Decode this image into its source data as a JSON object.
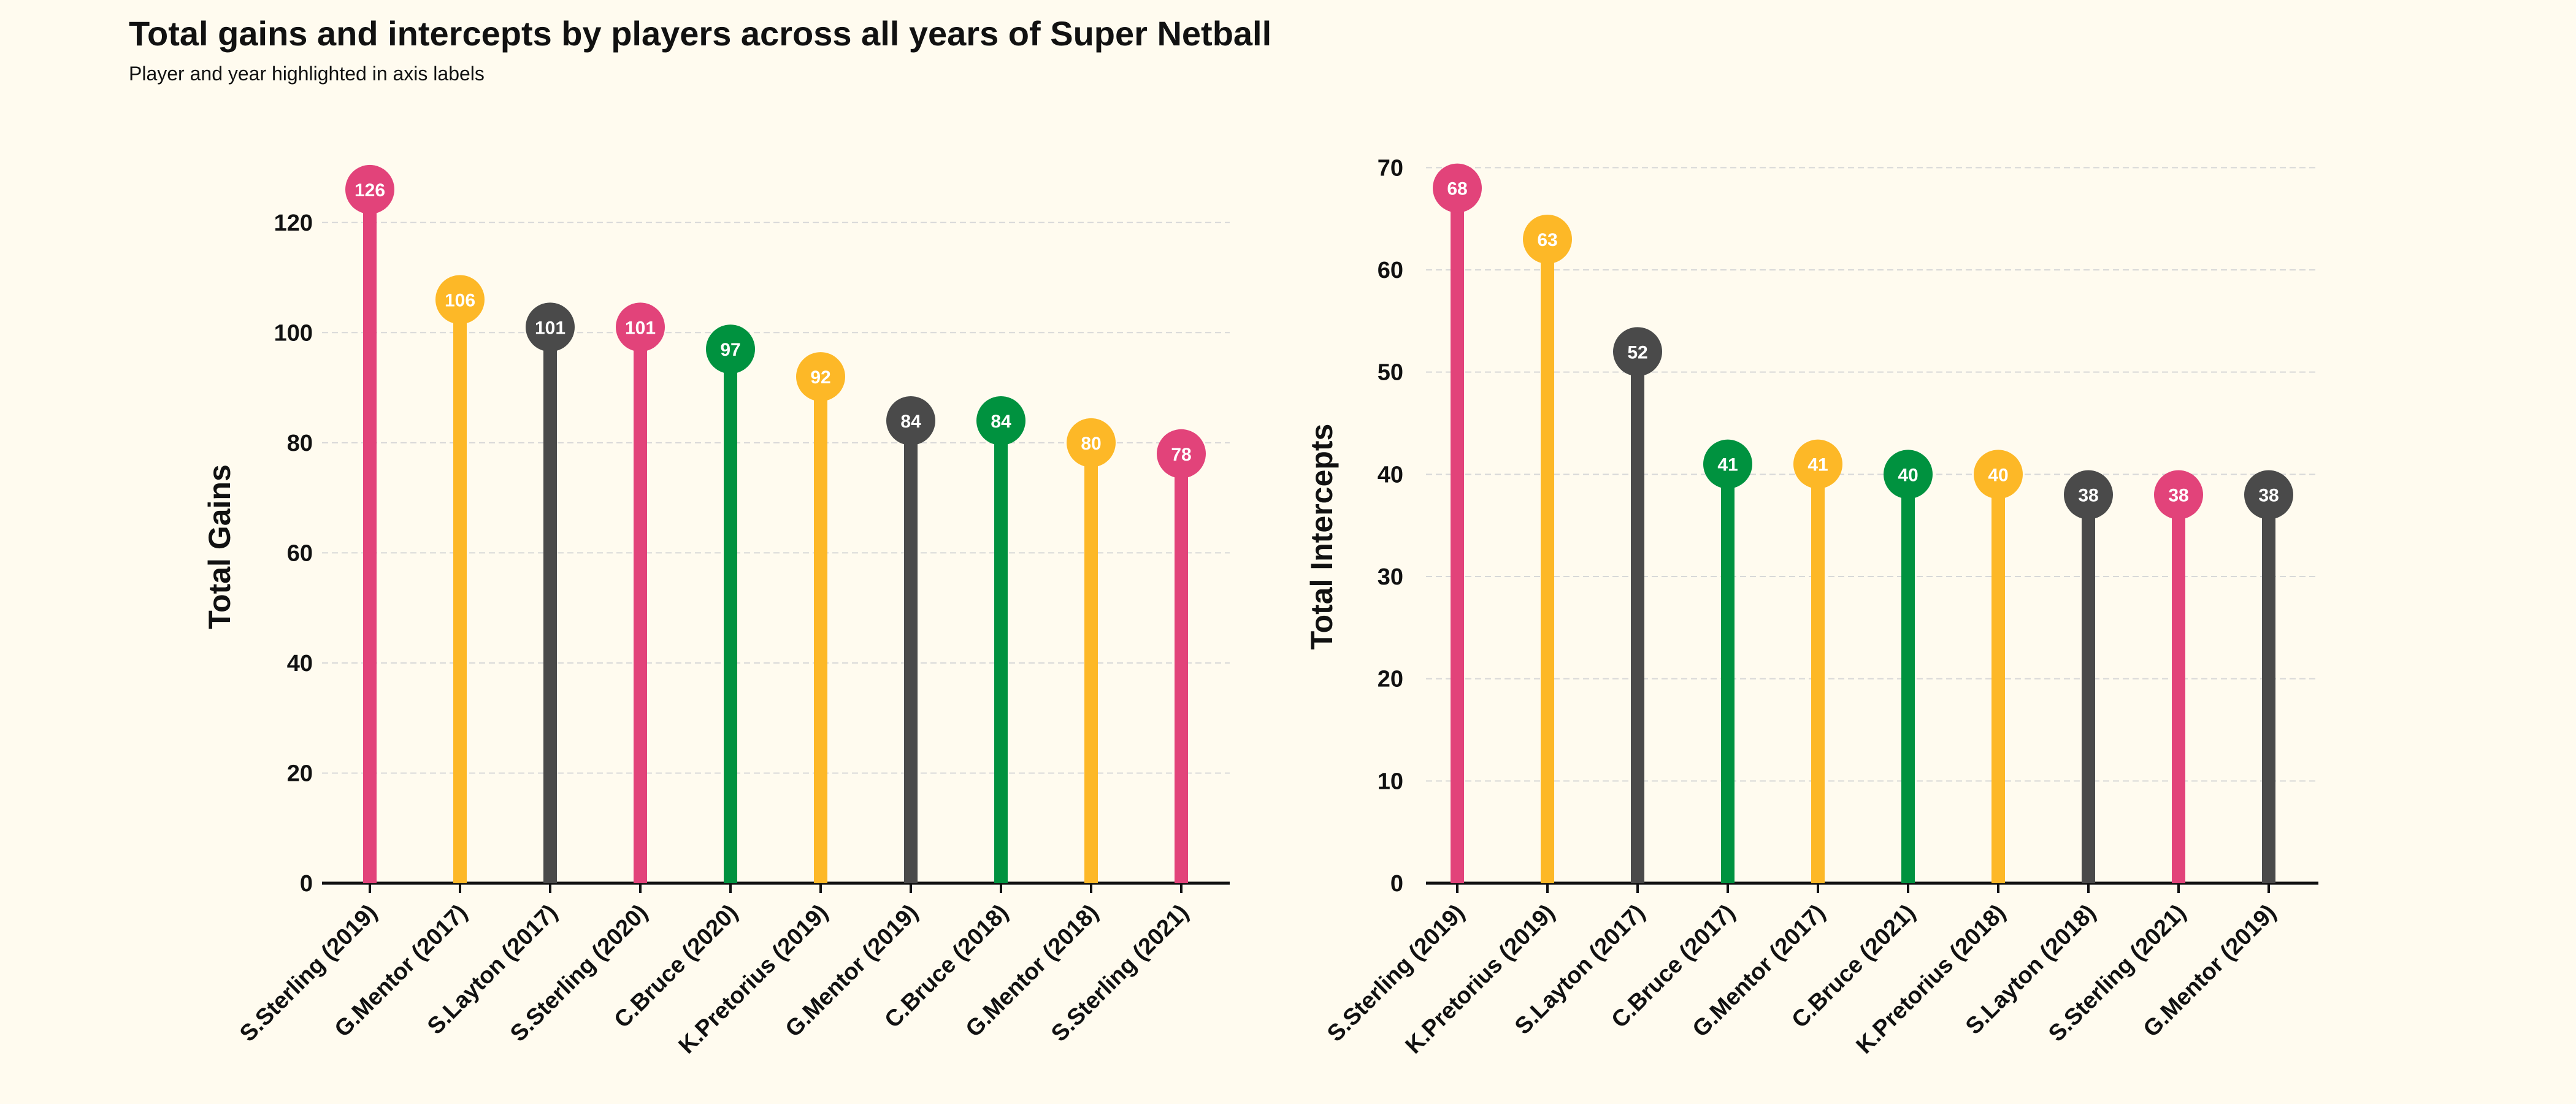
{
  "title": "Total gains and intercepts by players across all years of Super Netball",
  "subtitle": "Player and year highlighted in axis labels",
  "colors": {
    "pink": "#e2437a",
    "gold": "#fdb827",
    "dark": "#4a4a4a",
    "green": "#00923f",
    "background": "#fffbef",
    "grid": "#d8d8d8"
  },
  "chart_data": [
    {
      "type": "lollipop",
      "title": "",
      "xlabel": "",
      "ylabel": "Total Gains",
      "ylim": [
        0,
        130
      ],
      "yticks": [
        0,
        20,
        40,
        60,
        80,
        100,
        120
      ],
      "grid": true,
      "categories": [
        "S.Sterling (2019)",
        "G.Mentor (2017)",
        "S.Layton (2017)",
        "S.Sterling (2020)",
        "C.Bruce (2020)",
        "K.Pretorius (2019)",
        "G.Mentor (2019)",
        "C.Bruce (2018)",
        "G.Mentor (2018)",
        "S.Sterling (2021)"
      ],
      "values": [
        126,
        106,
        101,
        101,
        97,
        92,
        84,
        84,
        80,
        78
      ],
      "colors": [
        "pink",
        "gold",
        "dark",
        "pink",
        "green",
        "gold",
        "dark",
        "green",
        "gold",
        "pink"
      ]
    },
    {
      "type": "lollipop",
      "title": "",
      "xlabel": "",
      "ylabel": "Total Intercepts",
      "ylim": [
        0,
        72
      ],
      "yticks": [
        0,
        10,
        20,
        30,
        40,
        50,
        60,
        70
      ],
      "grid": true,
      "categories": [
        "S.Sterling (2019)",
        "K.Pretorius (2019)",
        "S.Layton (2017)",
        "C.Bruce (2017)",
        "G.Mentor (2017)",
        "C.Bruce (2021)",
        "K.Pretorius (2018)",
        "S.Layton (2018)",
        "S.Sterling (2021)",
        "G.Mentor (2019)"
      ],
      "values": [
        68,
        63,
        52,
        41,
        41,
        40,
        40,
        38,
        38,
        38
      ],
      "colors": [
        "pink",
        "gold",
        "dark",
        "green",
        "gold",
        "green",
        "gold",
        "dark",
        "pink",
        "dark"
      ]
    }
  ]
}
